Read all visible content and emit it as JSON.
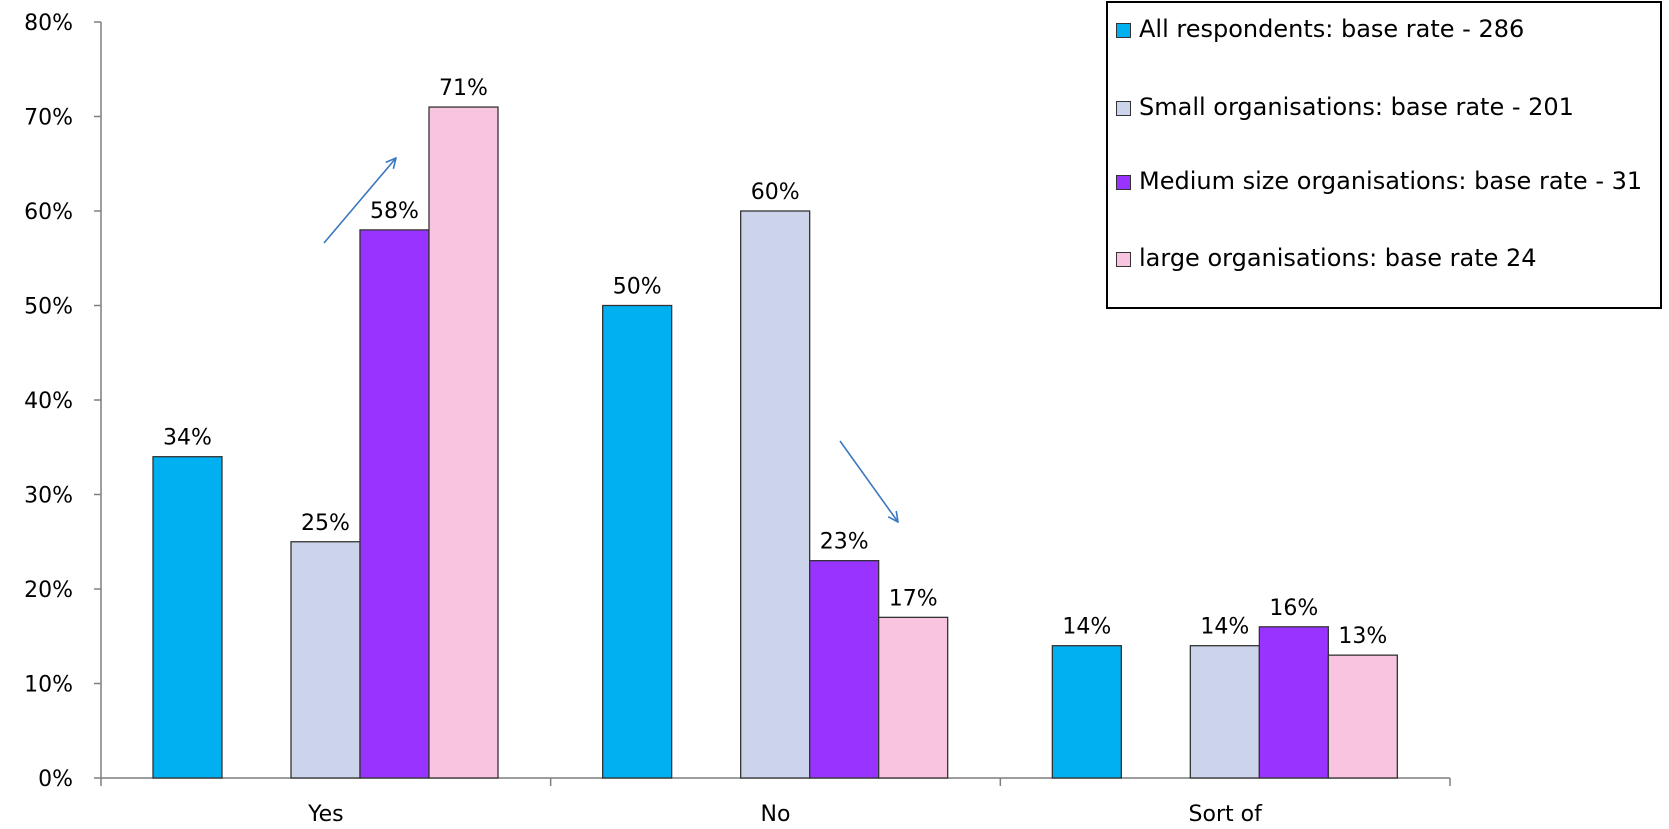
{
  "chart_data": {
    "type": "bar",
    "categories": [
      "Yes",
      "No",
      "Sort of"
    ],
    "series": [
      {
        "name": "All respondents:  base rate - 286",
        "color": "#00b0f0",
        "values": [
          34,
          50,
          14
        ]
      },
      {
        "name": "Small organisations:  base rate - 201",
        "color": "#ccd4ec",
        "values": [
          25,
          60,
          14
        ]
      },
      {
        "name": "Medium size organisations:  base rate - 31",
        "color": "#9933ff",
        "values": [
          58,
          23,
          16
        ]
      },
      {
        "name": "large organisations:  base rate 24",
        "color": "#f8c4e0",
        "values": [
          71,
          17,
          13
        ]
      }
    ],
    "data_labels": [
      [
        "34%",
        "50%",
        "14%"
      ],
      [
        "25%",
        "60%",
        "14%"
      ],
      [
        "58%",
        "23%",
        "16%"
      ],
      [
        "71%",
        "17%",
        "13%"
      ]
    ],
    "ylim": [
      0,
      80
    ],
    "yticks": [
      0,
      10,
      20,
      30,
      40,
      50,
      60,
      70,
      80
    ],
    "ytick_labels": [
      "0%",
      "10%",
      "20%",
      "30%",
      "40%",
      "50%",
      "60%",
      "70%",
      "80%"
    ],
    "title": "",
    "xlabel": "",
    "ylabel": "",
    "grid": false,
    "legend_position": "top-right",
    "annotations": [
      {
        "type": "arrow",
        "direction": "up",
        "near_category": "Yes"
      },
      {
        "type": "arrow",
        "direction": "down",
        "near_category": "No"
      }
    ]
  }
}
